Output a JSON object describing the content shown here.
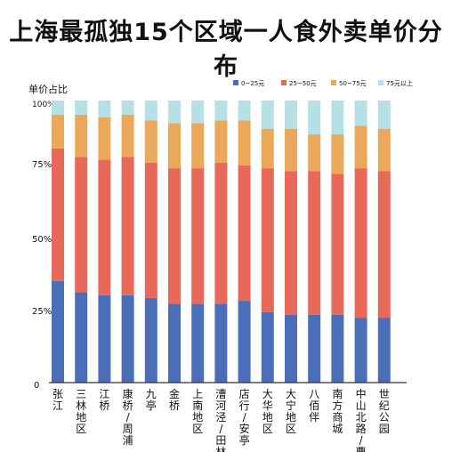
{
  "chart_data": {
    "type": "bar",
    "stacked": true,
    "title": "上海最孤独15个区域一人食外卖单价分布",
    "ylabel": "单价占比",
    "yticks": [
      "100%",
      "75%",
      "50%",
      "25%",
      "0"
    ],
    "ylim": [
      0,
      100
    ],
    "legend_position": "top-right",
    "categories": [
      "张江",
      "三林地区",
      "江桥",
      "康桥/周浦",
      "九亭",
      "金桥",
      "上南地区",
      "漕河泾/田林",
      "店行/安亭",
      "大华地区",
      "大宁地区",
      "八佰伴",
      "南方商城",
      "中山北路/曹杨",
      "世纪公园"
    ],
    "series": [
      {
        "name": "0~25元",
        "color": "#4a6fb8",
        "values": [
          36,
          32,
          31,
          31,
          30,
          28,
          28,
          28,
          29,
          25,
          24,
          24,
          24,
          23,
          23
        ]
      },
      {
        "name": "25~50元",
        "color": "#e8685a",
        "values": [
          47,
          48,
          48,
          49,
          48,
          48,
          48,
          50,
          48,
          51,
          51,
          51,
          50,
          53,
          52
        ]
      },
      {
        "name": "50~75元",
        "color": "#eca85a",
        "values": [
          12,
          15,
          15,
          15,
          15,
          16,
          16,
          15,
          16,
          14,
          15,
          13,
          14,
          15,
          15
        ]
      },
      {
        "name": "75元以上",
        "color": "#b5e0e6",
        "values": [
          5,
          5,
          6,
          5,
          7,
          8,
          8,
          7,
          7,
          10,
          10,
          12,
          12,
          9,
          10
        ]
      }
    ]
  }
}
